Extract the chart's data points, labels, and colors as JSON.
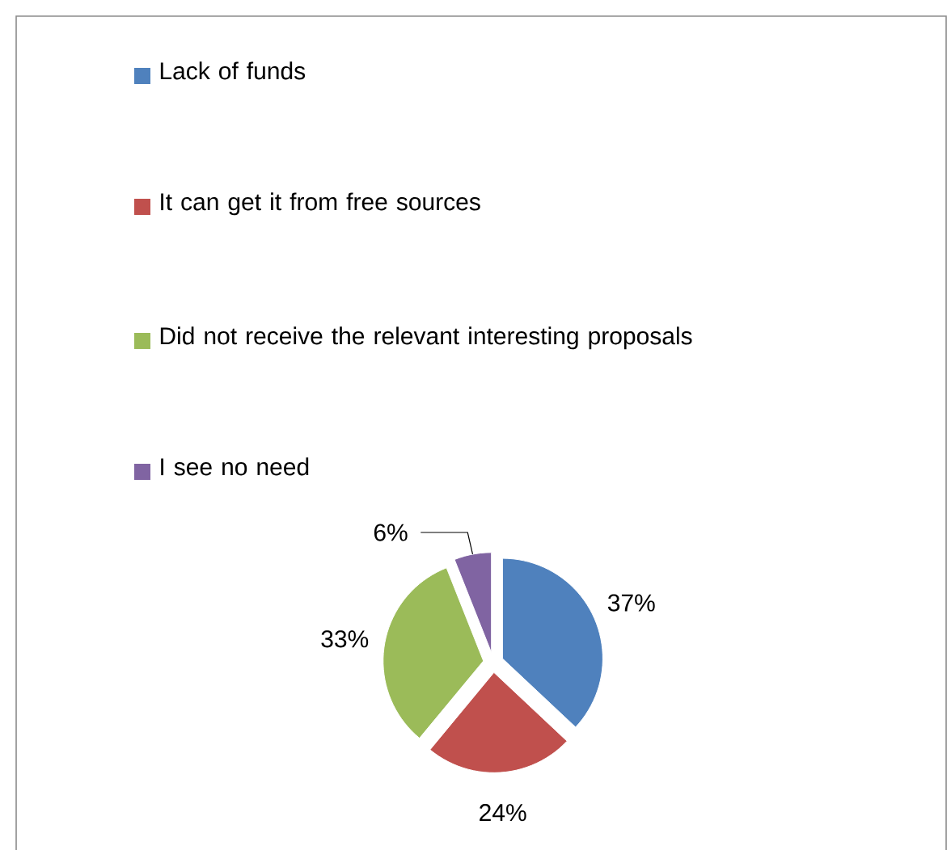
{
  "chart_data": {
    "type": "pie",
    "categories": [
      "Lack of funds",
      "It can get it from free sources",
      "Did not receive the relevant interesting proposals",
      "I see no need"
    ],
    "values": [
      37,
      24,
      33,
      6
    ],
    "value_labels": [
      "37%",
      "24%",
      "33%",
      "6%"
    ],
    "colors": [
      "#4f81bd",
      "#c0504d",
      "#9bbb59",
      "#8064a2"
    ],
    "legend": "top"
  }
}
